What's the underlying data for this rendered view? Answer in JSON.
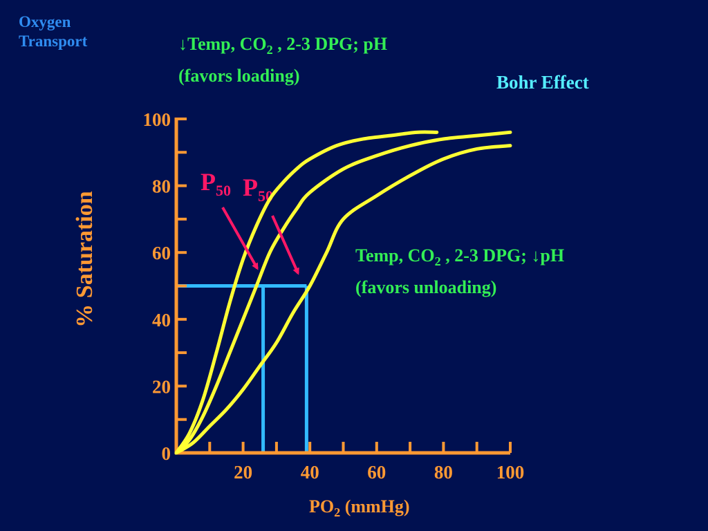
{
  "header": {
    "title_line1": "Oxygen",
    "title_line2": "Transport",
    "bohr": "Bohr Effect"
  },
  "annotations": {
    "loading_arrow": "↓",
    "loading_text": "Temp, CO",
    "loading_sub": "2",
    "loading_rest": " , 2-3 DPG;  pH",
    "loading_line2": "(favors loading)",
    "unloading_text": "Temp, CO",
    "unloading_sub": "2",
    "unloading_mid": " , 2-3 DPG; ",
    "unloading_arrow": "↓",
    "unloading_rest": "pH",
    "unloading_line2": "(favors unloading)",
    "p50_main": "P",
    "p50_sub": "50"
  },
  "colors": {
    "background": "#001050",
    "curve": "#ffff33",
    "guide": "#33bbff",
    "axis": "#ff9933",
    "arrow": "#ff1866",
    "annotation": "#33ee55",
    "title": "#2f8cf0",
    "bohr": "#55eeff"
  },
  "chart_data": {
    "type": "line",
    "title": "",
    "xlabel": "PO",
    "xlabel_sub": "2",
    "xlabel_unit": " (mmHg)",
    "ylabel": "% Saturation",
    "xlim": [
      0,
      100
    ],
    "ylim": [
      0,
      100
    ],
    "xticks": [
      20,
      40,
      60,
      80,
      100
    ],
    "yticks": [
      0,
      20,
      40,
      60,
      80,
      100
    ],
    "x_minor_step": 10,
    "y_minor_step": 10,
    "grid": false,
    "series": [
      {
        "x": [
          0,
          4,
          8,
          12,
          16,
          20,
          24,
          28,
          32,
          36,
          40,
          48,
          56,
          64,
          72,
          78
        ],
        "y": [
          0,
          6,
          16,
          30,
          45,
          58,
          68,
          76,
          81,
          85,
          88,
          92,
          94,
          95,
          96,
          96
        ]
      },
      {
        "x": [
          0,
          4,
          8,
          12,
          16,
          20,
          24,
          28,
          32,
          36,
          40,
          50,
          60,
          70,
          80,
          90,
          100
        ],
        "y": [
          0,
          4,
          11,
          20,
          30,
          40,
          50,
          60,
          67,
          73,
          78,
          85,
          89,
          92,
          94,
          95,
          96
        ]
      },
      {
        "x": [
          0,
          5,
          10,
          15,
          20,
          25,
          30,
          35,
          40,
          45,
          50,
          60,
          70,
          80,
          90,
          100
        ],
        "y": [
          0,
          3,
          8,
          13,
          19,
          26,
          33,
          42,
          50,
          60,
          70,
          77,
          83,
          88,
          91,
          92
        ]
      }
    ],
    "guides": {
      "saturation": 50,
      "p50_values": [
        26,
        39
      ]
    }
  }
}
